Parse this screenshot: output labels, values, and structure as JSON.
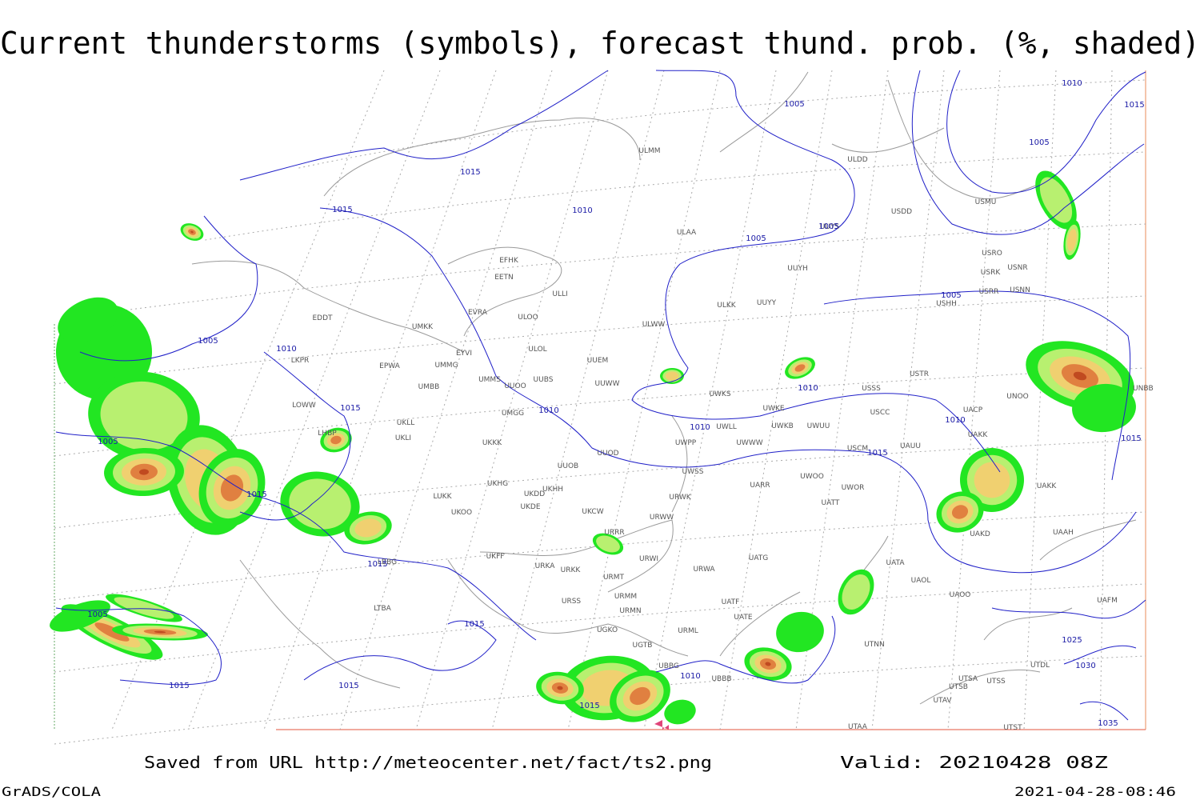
{
  "header": {
    "title": "Current thunderstorms (symbols), forecast thund. prob. (%, shaded)"
  },
  "footer": {
    "source": "Saved from URL  http://meteocenter.net/fact/ts2.png",
    "valid": "Valid: 20210428 08Z",
    "software": "GrADS/COLA",
    "timestamp": "2021-04-28-08:46"
  },
  "map": {
    "stations": [
      "ULMM",
      "ULDD",
      "USDD",
      "USMU",
      "ULAA",
      "UUYS",
      "USRO",
      "USRK",
      "USNR",
      "UUYH",
      "USRR",
      "USNN",
      "USHH",
      "ULKK",
      "UUYY",
      "EFHK",
      "EETN",
      "ULLI",
      "EVRA",
      "ULOO",
      "ULWW",
      "EDDT",
      "UMKK",
      "ULOL",
      "EYVI",
      "LKPR",
      "EPWA",
      "UMMG",
      "UUEM",
      "USTR",
      "UMMS",
      "UUOO",
      "UUBS",
      "UUWW",
      "UWKS",
      "USSS",
      "UNOO",
      "UNBB",
      "UMBB",
      "LOWW",
      "UWKE",
      "USCC",
      "UACP",
      "UKLL",
      "UMGG",
      "UWLL",
      "UWKB",
      "UWUU",
      "UAKK",
      "LHBP",
      "UKLI",
      "UKKK",
      "UWPP",
      "UWWW",
      "USCM",
      "UAUU",
      "UUOD",
      "UUOB",
      "UWSS",
      "LUKK",
      "UKHG",
      "UKDD",
      "UKHH",
      "UARR",
      "UWOO",
      "UWOR",
      "UAKK",
      "UKOO",
      "UKDE",
      "UKCW",
      "URWW",
      "URWK",
      "UATT",
      "URRR",
      "UAKD",
      "UAAH",
      "UKFF",
      "URKA",
      "URKK",
      "URWI",
      "UATG",
      "URWA",
      "UATA",
      "UAOL",
      "URMT",
      "URMM",
      "UAOO",
      "UATF",
      "UAFM",
      "LBBG",
      "URSS",
      "URMN",
      "UATE",
      "LTBA",
      "UGKO",
      "URML",
      "UGTB",
      "UBBG",
      "UBBB",
      "UTNN",
      "UTDL",
      "UTSA",
      "UTSB",
      "UTAV",
      "UTST",
      "UTAA",
      "UTSS"
    ],
    "isobars": [
      "1015",
      "1005",
      "1010",
      "1015",
      "1005",
      "1005",
      "1010",
      "1005",
      "1005",
      "1010",
      "1015",
      "1005",
      "1010",
      "1010",
      "1015",
      "1005",
      "1015",
      "1010",
      "1015",
      "1015",
      "1015",
      "1015",
      "1005",
      "1010",
      "1015",
      "1015",
      "1015",
      "1010",
      "1025",
      "1030",
      "1035"
    ]
  }
}
